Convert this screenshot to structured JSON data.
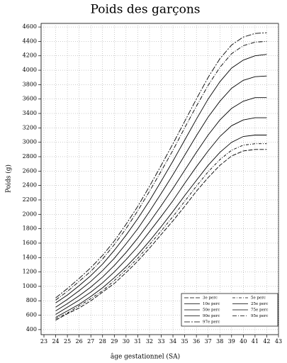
{
  "chart_data": {
    "type": "line",
    "title": "Poids des garçons",
    "x_label": "âge gestationnel (SA)",
    "y_label": "Poids (g)",
    "xlim": [
      23,
      43
    ],
    "ylim": [
      330,
      4650
    ],
    "xticks": [
      23,
      24,
      25,
      26,
      27,
      28,
      29,
      30,
      31,
      32,
      33,
      34,
      35,
      36,
      37,
      38,
      39,
      40,
      41,
      42,
      43
    ],
    "yticks": [
      400,
      600,
      800,
      1000,
      1200,
      1400,
      1600,
      1800,
      2000,
      2200,
      2400,
      2600,
      2800,
      3000,
      3200,
      3400,
      3600,
      3800,
      4000,
      4200,
      4400,
      4600
    ],
    "grid": true,
    "legend": "lower right",
    "x": [
      24,
      25,
      26,
      27,
      28,
      29,
      30,
      31,
      32,
      33,
      34,
      35,
      36,
      37,
      38,
      39,
      40,
      41,
      42
    ],
    "series": [
      {
        "name": "3e perc",
        "color": "#000000",
        "dash": "6 2",
        "values": [
          530,
          620,
          700,
          800,
          920,
          1040,
          1190,
          1350,
          1530,
          1720,
          1910,
          2110,
          2320,
          2510,
          2680,
          2810,
          2880,
          2900,
          2900
        ]
      },
      {
        "name": "5e perc",
        "color": "#000000",
        "dash": "4 2 1 2",
        "values": [
          550,
          630,
          730,
          830,
          940,
          1080,
          1230,
          1390,
          1580,
          1770,
          1970,
          2180,
          2390,
          2590,
          2760,
          2890,
          2960,
          2980,
          2980
        ]
      },
      {
        "name": "10e perc",
        "color": "#000000",
        "dash": "none",
        "values": [
          570,
          660,
          750,
          860,
          980,
          1120,
          1270,
          1440,
          1630,
          1830,
          2040,
          2260,
          2470,
          2680,
          2860,
          3000,
          3080,
          3100,
          3100
        ]
      },
      {
        "name": "25e perc",
        "color": "#000000",
        "dash": "none",
        "values": [
          610,
          710,
          810,
          920,
          1050,
          1200,
          1370,
          1550,
          1760,
          1970,
          2190,
          2430,
          2660,
          2880,
          3080,
          3230,
          3310,
          3340,
          3340
        ]
      },
      {
        "name": "50e perc",
        "color": "#000000",
        "dash": "none",
        "values": [
          660,
          760,
          870,
          990,
          1130,
          1290,
          1470,
          1670,
          1890,
          2120,
          2360,
          2610,
          2860,
          3100,
          3310,
          3470,
          3570,
          3620,
          3620
        ]
      },
      {
        "name": "75e perc",
        "color": "#000000",
        "dash": "none",
        "values": [
          710,
          820,
          940,
          1070,
          1220,
          1390,
          1590,
          1800,
          2040,
          2290,
          2550,
          2820,
          3090,
          3350,
          3570,
          3750,
          3860,
          3910,
          3920
        ]
      },
      {
        "name": "90e perc",
        "color": "#000000",
        "dash": "none",
        "values": [
          770,
          880,
          1010,
          1150,
          1310,
          1500,
          1710,
          1940,
          2190,
          2460,
          2740,
          3030,
          3320,
          3600,
          3840,
          4030,
          4140,
          4200,
          4220
        ]
      },
      {
        "name": "95e perc",
        "color": "#000000",
        "dash": "6 2 1 2",
        "values": [
          810,
          930,
          1070,
          1210,
          1380,
          1580,
          1800,
          2050,
          2320,
          2600,
          2890,
          3200,
          3500,
          3790,
          4040,
          4230,
          4340,
          4390,
          4400
        ]
      },
      {
        "name": "97e perc",
        "color": "#000000",
        "dash": "8 2 2 2",
        "values": [
          840,
          970,
          1110,
          1260,
          1430,
          1630,
          1860,
          2110,
          2390,
          2680,
          2980,
          3290,
          3600,
          3900,
          4160,
          4350,
          4460,
          4510,
          4520
        ]
      }
    ]
  }
}
